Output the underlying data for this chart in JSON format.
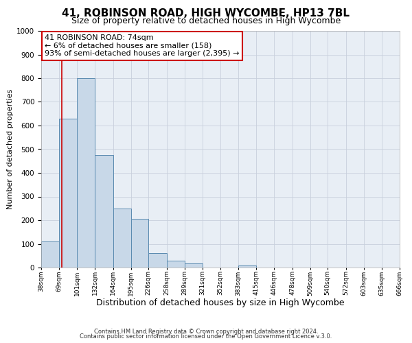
{
  "title1": "41, ROBINSON ROAD, HIGH WYCOMBE, HP13 7BL",
  "title2": "Size of property relative to detached houses in High Wycombe",
  "xlabel": "Distribution of detached houses by size in High Wycombe",
  "ylabel": "Number of detached properties",
  "bar_left_edges": [
    38,
    69,
    101,
    132,
    164,
    195,
    226,
    258,
    289,
    321,
    352,
    383,
    415,
    446,
    478,
    509,
    540,
    572,
    603,
    635
  ],
  "bar_widths": [
    31,
    32,
    31,
    32,
    31,
    31,
    32,
    31,
    32,
    31,
    31,
    32,
    31,
    32,
    31,
    31,
    32,
    31,
    32,
    31
  ],
  "bar_heights": [
    110,
    630,
    800,
    475,
    250,
    205,
    62,
    28,
    17,
    0,
    0,
    10,
    0,
    0,
    0,
    0,
    0,
    0,
    0,
    0
  ],
  "bar_color": "#c8d8e8",
  "bar_edge_color": "#5a8ab0",
  "tick_labels": [
    "38sqm",
    "69sqm",
    "101sqm",
    "132sqm",
    "164sqm",
    "195sqm",
    "226sqm",
    "258sqm",
    "289sqm",
    "321sqm",
    "352sqm",
    "383sqm",
    "415sqm",
    "446sqm",
    "478sqm",
    "509sqm",
    "540sqm",
    "572sqm",
    "603sqm",
    "635sqm",
    "666sqm"
  ],
  "ylim": [
    0,
    1000
  ],
  "yticks": [
    0,
    100,
    200,
    300,
    400,
    500,
    600,
    700,
    800,
    900,
    1000
  ],
  "xlim_left": 38,
  "xlim_right": 666,
  "vline_x": 74,
  "vline_color": "#cc0000",
  "annotation_title": "41 ROBINSON ROAD: 74sqm",
  "annotation_line1": "← 6% of detached houses are smaller (158)",
  "annotation_line2": "93% of semi-detached houses are larger (2,395) →",
  "annotation_box_color": "#cc0000",
  "footer1": "Contains HM Land Registry data © Crown copyright and database right 2024.",
  "footer2": "Contains public sector information licensed under the Open Government Licence v.3.0.",
  "bg_color": "#ffffff",
  "plot_bg_color": "#e8eef5",
  "grid_color": "#c8d0dc",
  "title1_fontsize": 11,
  "title2_fontsize": 9,
  "xlabel_fontsize": 9,
  "ylabel_fontsize": 8,
  "annotation_fontsize": 8,
  "tick_fontsize": 6.5,
  "footer_fontsize": 6
}
